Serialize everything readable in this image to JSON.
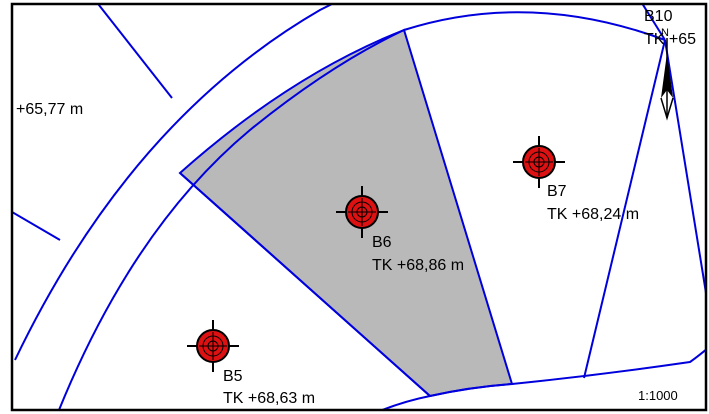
{
  "map": {
    "scale": "1:1000",
    "highlight_color": "#b9b9b9",
    "boundary_color": "#0000dd",
    "marker_color": "#dd1111",
    "marker_icon": "borehole-crosshair-icon",
    "north_arrow_icon": "north-arrow-icon"
  },
  "boreholes": [
    {
      "id": "B5",
      "label": "TK +68,63 m"
    },
    {
      "id": "B6",
      "label": "TK +68,86 m"
    },
    {
      "id": "B7",
      "label": "TK +68,24 m"
    },
    {
      "id": "B10",
      "label": "TK +65"
    }
  ],
  "labels": {
    "left_edge": "+65,77 m"
  }
}
